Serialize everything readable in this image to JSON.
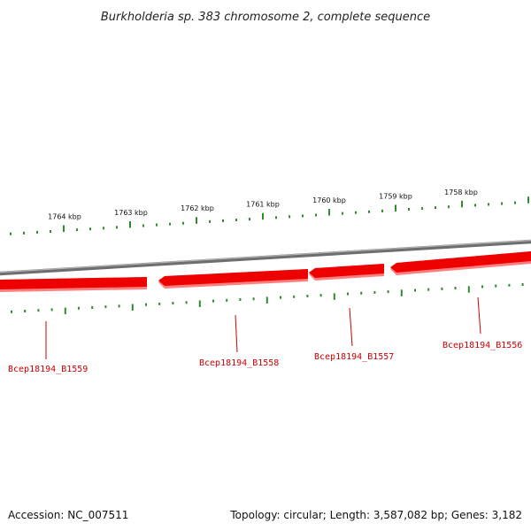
{
  "title": "Burkholderia sp. 383 chromosome 2, complete sequence",
  "footer": {
    "accession": "Accession: NC_007511",
    "summary": "Topology: circular; Length: 3,587,082 bp; Genes: 3,182"
  },
  "colors": {
    "backbone": "#888888",
    "gene": "#ee0000",
    "gene_shadow": "#ff7777",
    "tick": "#2e8b2e",
    "label": "#cc0000"
  },
  "ticks": {
    "labels": [
      "1764 kbp",
      "1763 kbp",
      "1762 kbp",
      "1761 kbp",
      "1760 kbp",
      "1759 kbp",
      "1758 kbp"
    ]
  },
  "genes": [
    {
      "locus": "Bcep18194_B1559"
    },
    {
      "locus": "Bcep18194_B1558"
    },
    {
      "locus": "Bcep18194_B1557"
    },
    {
      "locus": "Bcep18194_B1556"
    }
  ]
}
